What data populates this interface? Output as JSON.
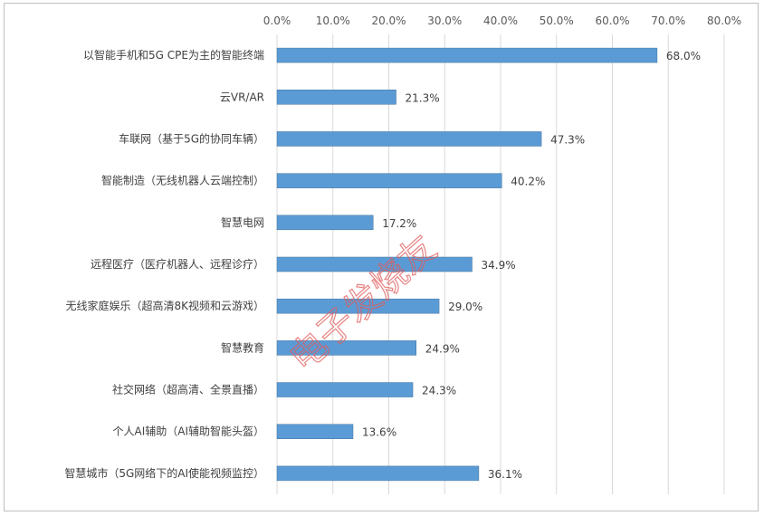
{
  "chart_data": {
    "type": "bar",
    "orientation": "horizontal",
    "categories": [
      "以智能手机和5G CPE为主的智能终端",
      "云VR/AR",
      "车联网（基于5G的协同车辆）",
      "智能制造（无线机器人云端控制）",
      "智慧电网",
      "远程医疗（医疗机器人、远程诊疗）",
      "无线家庭娱乐（超高清8K视频和云游戏）",
      "智慧教育",
      "社交网络（超高清、全景直播）",
      "个人AI辅助（AI辅助智能头盔）",
      "智慧城市（5G网络下的AI使能视频监控）"
    ],
    "values": [
      68.0,
      21.3,
      47.3,
      40.2,
      17.2,
      34.9,
      29.0,
      24.9,
      24.3,
      13.6,
      36.1
    ],
    "value_labels": [
      "68.0%",
      "21.3%",
      "47.3%",
      "40.2%",
      "17.2%",
      "34.9%",
      "29.0%",
      "24.9%",
      "24.3%",
      "13.6%",
      "36.1%"
    ],
    "x_ticks": [
      "0.0%",
      "10.0%",
      "20.0%",
      "30.0%",
      "40.0%",
      "50.0%",
      "60.0%",
      "70.0%",
      "80.0%"
    ],
    "xlim": [
      0,
      80
    ],
    "x_axis_position": "top",
    "grid": true,
    "bar_color": "#5b9bd5",
    "title": "",
    "xlabel": "",
    "ylabel": ""
  },
  "watermark": {
    "text": "电子发烧友",
    "color": "#e05a5a"
  }
}
